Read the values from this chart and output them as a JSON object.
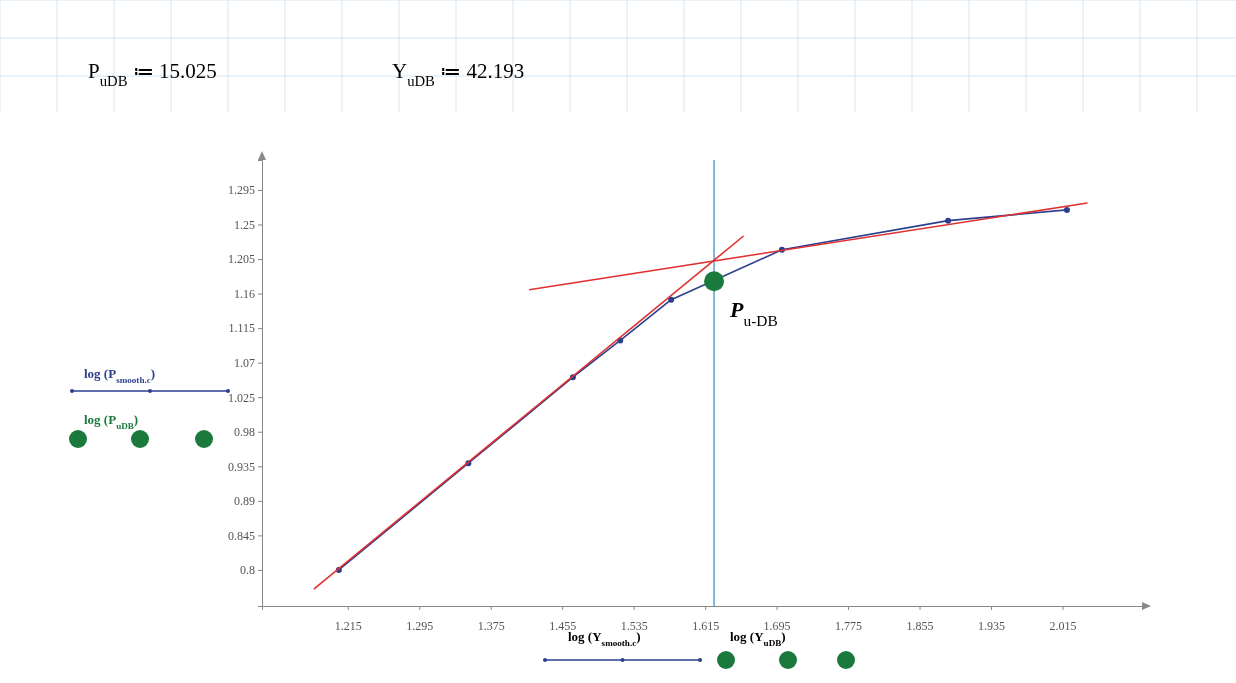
{
  "chart_data": {
    "type": "line",
    "annotations": [
      "P$_{uDB}$ ≔ 15.025",
      "Y$_{uDB}$ ≔ 42.193",
      {
        "text": "P$_{u-DB}$",
        "x": 1.625,
        "y": 1.176
      },
      "log (Y$_{smooth.c}$)",
      "log (Y$_{uDB}$)"
    ],
    "series": [
      {
        "name": "log (P$_{smooth.c}$)",
        "color": "#2b3f8f",
        "marker": "circle",
        "x": [
          1.205,
          1.35,
          1.467,
          1.52,
          1.577,
          1.701,
          1.887,
          2.02
        ],
        "values": [
          0.8,
          0.939,
          1.051,
          1.099,
          1.152,
          1.217,
          1.255,
          1.269
        ]
      },
      {
        "name": "log (P$_{uDB}$)",
        "type": "scatter",
        "color": "#1a7a3e",
        "marker": "circle",
        "x": [
          1.625
        ],
        "values": [
          1.176
        ]
      },
      {
        "color": "#e03030",
        "marker": "none",
        "x": [
          1.177,
          1.658
        ],
        "values": [
          0.775,
          1.235
        ]
      },
      {
        "color": "#e03030",
        "marker": "none",
        "x": [
          1.418,
          2.043
        ],
        "values": [
          1.165,
          1.278
        ]
      }
    ],
    "ref_lines": [
      {
        "axis": "x",
        "value": 1.625,
        "color": "#5aa0c8"
      }
    ],
    "xlim": [
      1.119,
      2.104
    ],
    "ylim": [
      0.753,
      1.334
    ],
    "xticks": [
      1.215,
      1.295,
      1.375,
      1.455,
      1.535,
      1.615,
      1.695,
      1.775,
      1.855,
      1.935,
      2.015
    ],
    "yticks": [
      0.8,
      0.845,
      0.89,
      0.935,
      0.98,
      1.025,
      1.07,
      1.115,
      1.16,
      1.205,
      1.25,
      1.295
    ],
    "legend": "left",
    "grid": false
  }
}
